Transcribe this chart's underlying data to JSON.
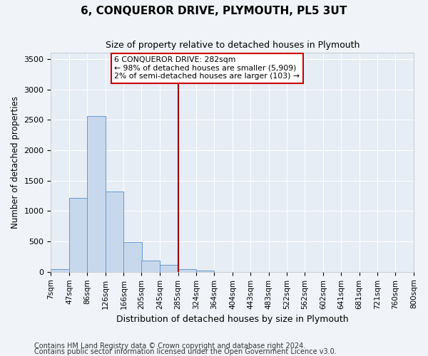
{
  "title": "6, CONQUEROR DRIVE, PLYMOUTH, PL5 3UT",
  "subtitle": "Size of property relative to detached houses in Plymouth",
  "xlabel": "Distribution of detached houses by size in Plymouth",
  "ylabel": "Number of detached properties",
  "bin_labels": [
    "7sqm",
    "47sqm",
    "86sqm",
    "126sqm",
    "166sqm",
    "205sqm",
    "245sqm",
    "285sqm",
    "324sqm",
    "364sqm",
    "404sqm",
    "443sqm",
    "483sqm",
    "522sqm",
    "562sqm",
    "602sqm",
    "641sqm",
    "681sqm",
    "721sqm",
    "760sqm",
    "800sqm"
  ],
  "bin_edges": [
    7,
    47,
    86,
    126,
    166,
    205,
    245,
    285,
    324,
    364,
    404,
    443,
    483,
    522,
    562,
    602,
    641,
    681,
    721,
    760,
    800
  ],
  "bar_values": [
    50,
    1220,
    2560,
    1320,
    490,
    185,
    115,
    50,
    20,
    0,
    0,
    0,
    0,
    0,
    0,
    0,
    0,
    0,
    0,
    0
  ],
  "bar_color": "#c8d8ec",
  "bar_edge_color": "#6699cc",
  "vline_x": 285,
  "vline_color": "#990000",
  "ylim": [
    0,
    3600
  ],
  "yticks": [
    0,
    500,
    1000,
    1500,
    2000,
    2500,
    3000,
    3500
  ],
  "annotation_title": "6 CONQUEROR DRIVE: 282sqm",
  "annotation_line1": "← 98% of detached houses are smaller (5,909)",
  "annotation_line2": "2% of semi-detached houses are larger (103) →",
  "annotation_color": "#cc0000",
  "footnote1": "Contains HM Land Registry data © Crown copyright and database right 2024.",
  "footnote2": "Contains public sector information licensed under the Open Government Licence v3.0.",
  "bg_color": "#f0f4f8",
  "plot_bg_color": "#e6edf5",
  "grid_color": "#ffffff",
  "title_fontsize": 11,
  "subtitle_fontsize": 9,
  "axis_label_fontsize": 8.5,
  "tick_fontsize": 7.5,
  "footnote_fontsize": 7
}
